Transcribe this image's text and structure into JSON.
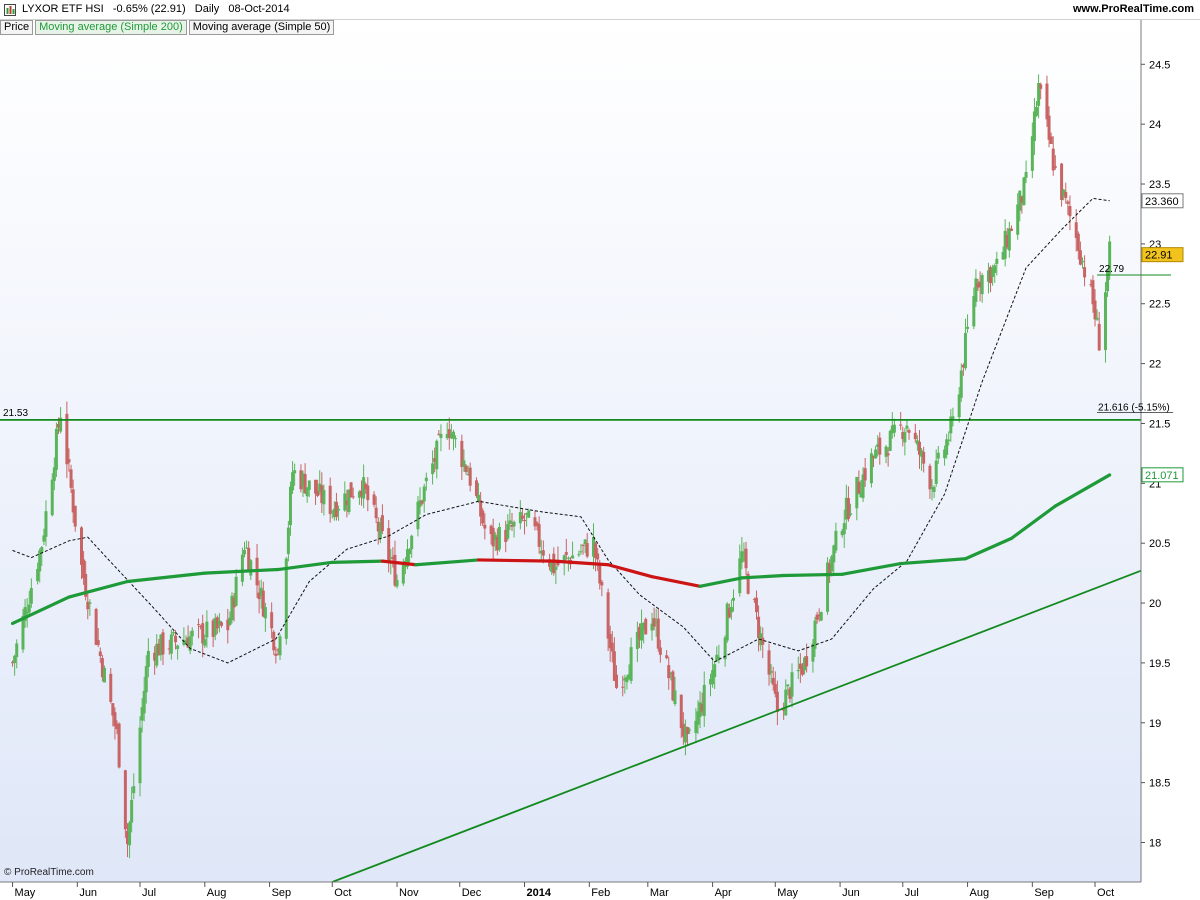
{
  "header": {
    "title": "LYXOR ETF HSI   -0.65% (22.91)   Daily   08-Oct-2014",
    "site": "www.ProRealTime.com"
  },
  "legend": {
    "price": "Price",
    "ma200": "Moving average (Simple 200)",
    "ma50": "Moving average (Simple 50)"
  },
  "footer": {
    "copyright": "© ProRealTime.com"
  },
  "colors": {
    "up": "#5ab55a",
    "down": "#c86464",
    "ma200_up": "#1e9a38",
    "ma200_down": "#cc1414",
    "trend": "#128a1e",
    "last_price_bg": "#f2c31c",
    "plot_top": "#ffffff",
    "plot_bottom": "#dfe7f8"
  },
  "chart_data": {
    "type": "line",
    "title": "LYXOR ETF HSI",
    "yaxis": {
      "ticks": [
        18,
        18.5,
        19,
        19.5,
        20,
        20.5,
        21,
        21.5,
        22,
        22.5,
        23,
        23.5,
        24,
        24.5
      ],
      "range": [
        17.67,
        24.87
      ]
    },
    "xaxis": {
      "labels": [
        "May",
        "Jun",
        "Jul",
        "Aug",
        "Sep",
        "Oct",
        "Nov",
        "Dec",
        "2014",
        "Feb",
        "Mar",
        "Apr",
        "May",
        "Jun",
        "Jul",
        "Aug",
        "Sep",
        "Oct"
      ]
    },
    "series": [
      {
        "name": "Price",
        "x": [
          "2013-05-01",
          "2013-05-15",
          "2013-05-24",
          "2013-06-03",
          "2013-06-20",
          "2013-06-25",
          "2013-07-05",
          "2013-07-22",
          "2013-08-12",
          "2013-08-20",
          "2013-09-05",
          "2013-09-12",
          "2013-10-01",
          "2013-10-15",
          "2013-11-01",
          "2013-11-15",
          "2013-11-25",
          "2013-12-05",
          "2013-12-15",
          "2014-01-02",
          "2014-01-15",
          "2014-02-03",
          "2014-02-14",
          "2014-03-03",
          "2014-03-14",
          "2014-03-20",
          "2014-04-04",
          "2014-04-15",
          "2014-05-02",
          "2014-05-15",
          "2014-06-02",
          "2014-06-16",
          "2014-07-03",
          "2014-07-15",
          "2014-07-25",
          "2014-08-05",
          "2014-08-15",
          "2014-08-29",
          "2014-09-04",
          "2014-09-12",
          "2014-09-23",
          "2014-09-30",
          "2014-10-03",
          "2014-10-08"
        ],
        "values": [
          19.5,
          20.5,
          21.6,
          20.3,
          18.9,
          18.0,
          19.6,
          19.7,
          19.8,
          20.5,
          19.6,
          21.1,
          20.8,
          21.0,
          20.2,
          21.0,
          21.5,
          21.1,
          20.5,
          20.7,
          20.3,
          20.5,
          19.3,
          19.9,
          19.2,
          18.8,
          19.6,
          20.4,
          19.1,
          19.5,
          20.7,
          21.2,
          21.5,
          21.0,
          21.5,
          22.7,
          22.8,
          23.5,
          24.3,
          23.6,
          23.0,
          22.5,
          22.2,
          22.91
        ]
      },
      {
        "name": "Moving average (Simple 200)",
        "x": [
          "2013-05-01",
          "2013-05-28",
          "2013-06-25",
          "2013-08-01",
          "2013-09-05",
          "2013-10-01",
          "2013-10-25",
          "2013-11-10",
          "2013-12-10",
          "2014-01-15",
          "2014-02-10",
          "2014-03-03",
          "2014-03-26",
          "2014-04-15",
          "2014-05-05",
          "2014-06-02",
          "2014-06-30",
          "2014-07-31",
          "2014-08-22",
          "2014-09-12",
          "2014-10-08"
        ],
        "values": [
          19.83,
          20.05,
          20.18,
          20.25,
          20.28,
          20.34,
          20.35,
          20.32,
          20.36,
          20.35,
          20.32,
          20.22,
          20.14,
          20.21,
          20.23,
          20.24,
          20.33,
          20.37,
          20.54,
          20.81,
          21.07
        ]
      },
      {
        "name": "Moving average (Simple 50)",
        "x": [
          "2013-05-01",
          "2013-05-10",
          "2013-05-28",
          "2013-06-06",
          "2013-06-15",
          "2013-07-08",
          "2013-07-25",
          "2013-08-12",
          "2013-09-04",
          "2013-09-20",
          "2013-10-08",
          "2013-10-28",
          "2013-11-15",
          "2013-12-10",
          "2014-01-10",
          "2014-01-28",
          "2014-02-10",
          "2014-02-25",
          "2014-03-18",
          "2014-04-02",
          "2014-04-23",
          "2014-05-12",
          "2014-05-28",
          "2014-06-17",
          "2014-07-03",
          "2014-07-21",
          "2014-08-08",
          "2014-08-29",
          "2014-09-15",
          "2014-09-30",
          "2014-10-08"
        ],
        "values": [
          20.44,
          20.38,
          20.52,
          20.55,
          20.38,
          19.95,
          19.62,
          19.5,
          19.7,
          20.18,
          20.45,
          20.56,
          20.74,
          20.85,
          20.76,
          20.72,
          20.36,
          20.07,
          19.8,
          19.51,
          19.7,
          19.6,
          19.7,
          20.12,
          20.35,
          20.91,
          21.85,
          22.8,
          23.12,
          23.38,
          23.36
        ]
      }
    ],
    "horizontal_lines": [
      {
        "value": 21.53,
        "label": "21.53"
      }
    ],
    "trendline": {
      "from": {
        "x": "2013-10-01",
        "y": 17.67
      },
      "to": {
        "x": "2014-10-23",
        "y": 20.27
      }
    },
    "annotations": [
      {
        "text": "22.79",
        "x": "2014-10-01",
        "y": 22.79
      },
      {
        "text": "21.616 (-5.15%)",
        "x": "2014-10-01",
        "y": 21.616
      }
    ],
    "axis_value_labels": [
      {
        "text": "23.360",
        "value": 23.36,
        "style": "plain"
      },
      {
        "text": "22.91",
        "value": 22.91,
        "style": "last-price"
      },
      {
        "text": "21.071",
        "value": 21.071,
        "style": "ma200"
      }
    ],
    "grid": false,
    "legend_position": "top-left"
  }
}
